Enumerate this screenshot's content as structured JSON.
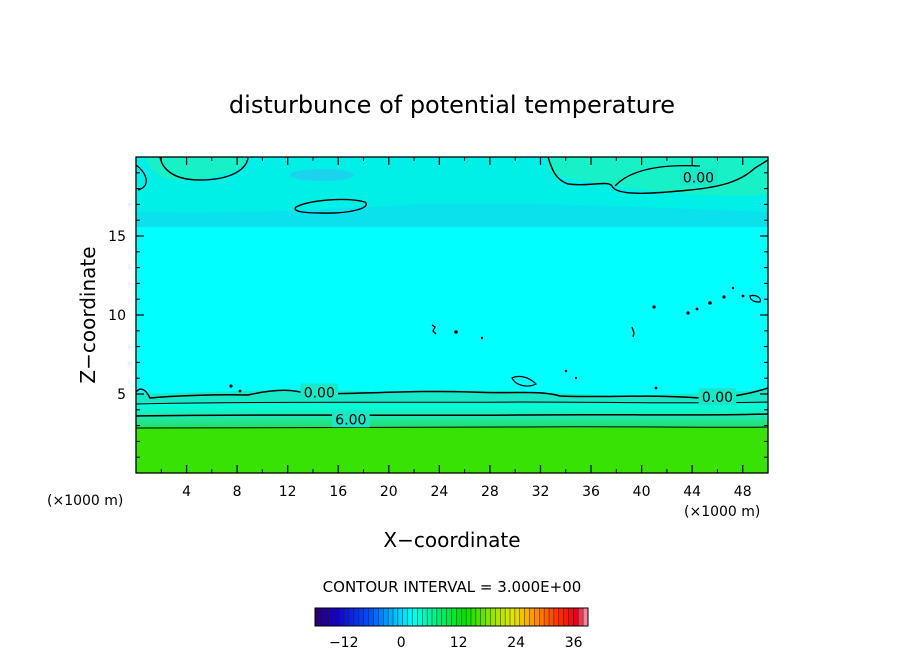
{
  "chart_data": {
    "type": "heatmap",
    "title": "disturbunce of potential temperature",
    "xlabel": "X−coordinate",
    "ylabel": "Z−coordinate",
    "x_unit": "(×1000 m)",
    "z_unit": "(×1000 m)",
    "xlim": [
      0,
      50
    ],
    "ylim": [
      0,
      20
    ],
    "x_ticks": [
      4,
      8,
      12,
      16,
      20,
      24,
      28,
      32,
      36,
      40,
      44,
      48
    ],
    "y_ticks": [
      5,
      10,
      15
    ],
    "contour_interval_label": "CONTOUR INTERVAL = 3.000E+00",
    "contour_labels": [
      {
        "text": "0.00",
        "x": 44.5,
        "z": 18.7
      },
      {
        "text": "0.00",
        "x": 14.5,
        "z": 5.1
      },
      {
        "text": "0.00",
        "x": 46.0,
        "z": 4.8
      },
      {
        "text": "6.00",
        "x": 17.0,
        "z": 3.4
      }
    ],
    "colorbar": {
      "min": -18,
      "max": 39,
      "ticks": [
        -12,
        0,
        12,
        24,
        36
      ]
    },
    "colors": {
      "background_field": "#00ffff",
      "upper_layer": "#00f0e8",
      "near_zero_band": "#19e8c8",
      "warm_low_layer": "#22e050",
      "surface_layer": "#33e000",
      "cool_streak": "#22ccee"
    }
  }
}
